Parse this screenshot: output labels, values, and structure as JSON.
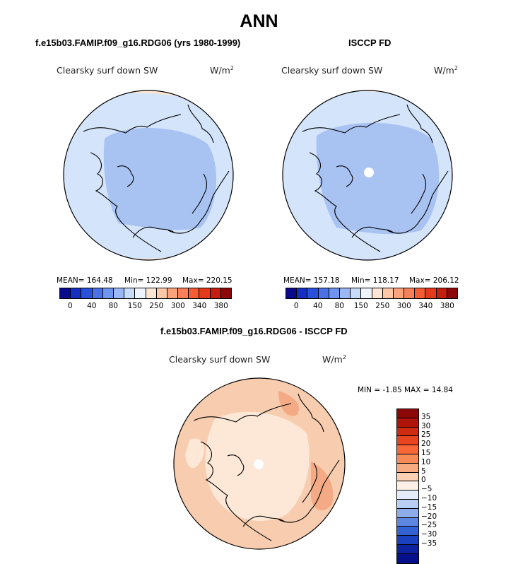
{
  "page_title": "ANN",
  "panels": [
    {
      "title": "f.e15b03.FAMIP.f09_g16.RDG06 (yrs 1980-1999)",
      "var_label": "Clearsky surf down SW",
      "units_base": "W/m",
      "units_sup": "2",
      "stats": {
        "mean": "MEAN= 164.48",
        "min": "Min= 122.99",
        "max": "Max= 220.15"
      }
    },
    {
      "title": "ISCCP FD",
      "var_label": "Clearsky surf down SW",
      "units_base": "W/m",
      "units_sup": "2",
      "stats": {
        "mean": "MEAN= 157.18",
        "min": "Min= 118.17",
        "max": "Max= 206.12"
      }
    },
    {
      "title": "f.e15b03.FAMIP.f09_g16.RDG06 - ISCCP FD",
      "var_label": "Clearsky surf down SW",
      "units_base": "W/m",
      "units_sup": "2",
      "stats": {
        "minmax": "MIN =  -1.85 MAX =  14.84"
      }
    }
  ],
  "colorbar_abs": {
    "colors": [
      "#0a0a8c",
      "#1530c0",
      "#2850d8",
      "#4a72e6",
      "#7095ee",
      "#9ab8f4",
      "#c8dcfa",
      "#eef4fc",
      "#fde6d4",
      "#fcc8a8",
      "#fba47c",
      "#f88058",
      "#f45c34",
      "#e43a1c",
      "#c41e10",
      "#8c0808"
    ],
    "tick_labels": [
      "0",
      "40",
      "80",
      "150",
      "250",
      "300",
      "340",
      "380"
    ]
  },
  "colorbar_diff": {
    "colors": [
      "#8c0808",
      "#b01408",
      "#d02a10",
      "#e84420",
      "#f86838",
      "#f88a58",
      "#f8aa80",
      "#fcd0b4",
      "#fef0e6",
      "#e4ecfa",
      "#b8cef4",
      "#8cacec",
      "#5c86e2",
      "#3462d4",
      "#1a42c0",
      "#0c22a0",
      "#06108c"
    ],
    "tick_labels": [
      "35",
      "30",
      "25",
      "20",
      "15",
      "10",
      "5",
      "0",
      "−5",
      "−10",
      "−15",
      "−20",
      "−25",
      "−30",
      "−35"
    ]
  },
  "map_colors": {
    "abs_outer": "#fde6d4",
    "abs_main": "#d4e4fa",
    "abs_inner": "#a8c2f2",
    "diff_main": "#f8ccae",
    "diff_inner": "#fde8d8",
    "diff_dark": "#f4aa84",
    "pole_hole": "#ffffff",
    "coast": "#000000"
  },
  "icons": [
    "polar-stereographic-map"
  ]
}
